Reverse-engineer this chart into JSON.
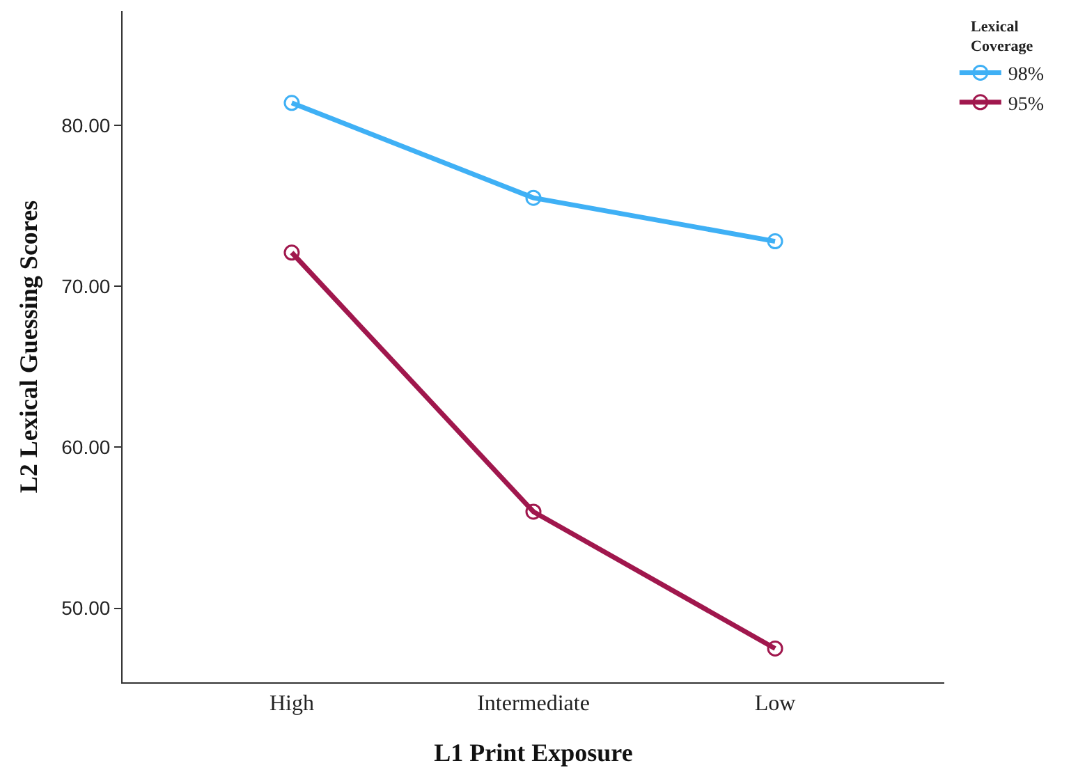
{
  "chart_data": {
    "type": "line",
    "xlabel": "L1 Print Exposure",
    "ylabel": "L2 Lexical Guessing Scores",
    "legend_title": "Lexical Coverage",
    "categories": [
      "High",
      "Intermediate",
      "Low"
    ],
    "series": [
      {
        "name": "98%",
        "color": "#3fb0f5",
        "values": [
          81.4,
          75.5,
          72.8
        ]
      },
      {
        "name": "95%",
        "color": "#a0174d",
        "values": [
          72.1,
          56.0,
          47.5
        ]
      }
    ],
    "ylim": [
      45.4,
      87.1
    ],
    "yticks": [
      {
        "value": 50,
        "label": "50.00"
      },
      {
        "value": 60,
        "label": "60.00"
      },
      {
        "value": 70,
        "label": "70.00"
      },
      {
        "value": 80,
        "label": "80.00"
      }
    ],
    "grid": false,
    "legend": "top right",
    "marker": "circle",
    "line_style": "solid"
  }
}
